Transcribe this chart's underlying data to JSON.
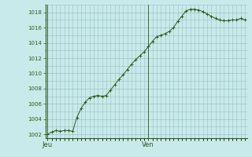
{
  "background_color": "#c8eaea",
  "plot_bg_color": "#c8eaea",
  "grid_color": "#9bbfbf",
  "line_color": "#2d5a1b",
  "marker_color": "#2d5a1b",
  "ylim": [
    1001.5,
    1019.0
  ],
  "yticks": [
    1002,
    1004,
    1006,
    1008,
    1010,
    1012,
    1014,
    1016,
    1018
  ],
  "xtick_labels": [
    "Jeu",
    "Ven"
  ],
  "xtick_positions": [
    0,
    24
  ],
  "y_values": [
    1002.0,
    1002.3,
    1002.5,
    1002.4,
    1002.5,
    1002.5,
    1002.4,
    1004.2,
    1005.4,
    1006.2,
    1006.8,
    1007.0,
    1007.1,
    1007.0,
    1007.1,
    1007.8,
    1008.5,
    1009.2,
    1009.8,
    1010.5,
    1011.2,
    1011.8,
    1012.3,
    1012.8,
    1013.5,
    1014.2,
    1014.8,
    1015.0,
    1015.2,
    1015.5,
    1016.0,
    1016.8,
    1017.5,
    1018.2,
    1018.4,
    1018.4,
    1018.3,
    1018.1,
    1017.8,
    1017.5,
    1017.2,
    1017.0,
    1016.9,
    1016.9,
    1017.0,
    1017.0,
    1017.2,
    1017.0
  ],
  "ylabel_fontsize": 5,
  "xlabel_fontsize": 6
}
